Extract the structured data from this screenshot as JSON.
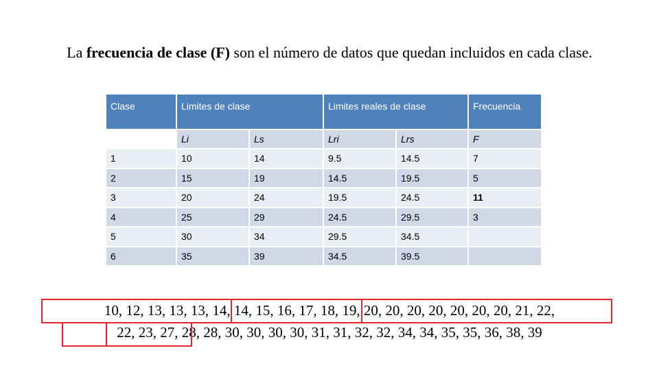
{
  "title": {
    "parts": [
      "La ",
      "frecuencia de clase (F)",
      " son el número de datos que quedan incluidos en cada clase."
    ]
  },
  "table": {
    "header": [
      "Clase",
      "Limites de clase",
      "Limites reales de clase",
      "Frecuencia"
    ],
    "subheader": [
      "Li",
      "Ls",
      "Lri",
      "Lrs",
      "F"
    ],
    "rows": [
      [
        "1",
        "10",
        "14",
        "9.5",
        "14.5",
        "7"
      ],
      [
        "2",
        "15",
        "19",
        "14.5",
        "19.5",
        "5"
      ],
      [
        "3",
        "20",
        "24",
        "19.5",
        "24.5",
        "11"
      ],
      [
        "4",
        "25",
        "29",
        "24.5",
        "29.5",
        "3"
      ],
      [
        "5",
        "30",
        "34",
        "29.5",
        "34.5"
      ],
      [
        "6",
        "35",
        "39",
        "34.5",
        "39.5"
      ]
    ]
  },
  "data_sequence": {
    "lines": [
      "10, 12, 13, 13, 13, 14, 14, 15, 16, 17, 18, 19, 20, 20, 20, 20, 20, 20, 20, 21, 22,",
      "22, 23, 27, 28, 28, 30, 30, 30, 30, 31, 31, 32, 32, 34, 34, 35, 35, 36, 38, 39"
    ]
  }
}
